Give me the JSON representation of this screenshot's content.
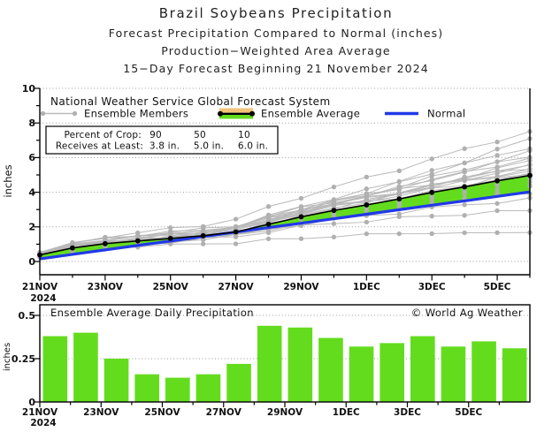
{
  "page": {
    "title_lines": [
      "Brazil Soybeans Precipitation",
      "Forecast Precipitation Compared to Normal (inches)",
      "Production−Weighted Area Average",
      "15−Day Forecast Beginning 21 November 2024"
    ]
  },
  "colors": {
    "green": "#64dc1e",
    "blue": "#2139e8",
    "orange": "#f4c377",
    "member_line": "#b9b9b9",
    "member_dot": "#b0b0b0",
    "grid": "#9a9a9a",
    "frame": "#000000"
  },
  "top_chart": {
    "source_label": "National Weather Service Global Forecast System",
    "legend": {
      "members_label": "Ensemble Members",
      "average_label": "Ensemble Average",
      "normal_label": "Normal"
    },
    "crop_box": {
      "row1_label": "Percent of Crop:",
      "row2_label": "Receives at Least:",
      "cols": [
        {
          "pct": "90",
          "amount": "3.8 in."
        },
        {
          "pct": "50",
          "amount": "5.0 in."
        },
        {
          "pct": "10",
          "amount": "6.0 in."
        }
      ]
    },
    "ylabel": "inches",
    "x_year": "2024"
  },
  "bottom_chart": {
    "title": "Ensemble Average Daily Precipitation",
    "watermark": "© World Ag Weather",
    "ylabel": "inches",
    "x_year": "2024"
  },
  "chart_data": [
    {
      "type": "line",
      "panel": "top-cumulative-precipitation",
      "x_days": [
        "21NOV",
        "22NOV",
        "23NOV",
        "24NOV",
        "25NOV",
        "26NOV",
        "27NOV",
        "28NOV",
        "29NOV",
        "30NOV",
        "1DEC",
        "2DEC",
        "3DEC",
        "4DEC",
        "5DEC",
        "6DEC"
      ],
      "x_tick_labels": [
        "21NOV",
        "23NOV",
        "25NOV",
        "27NOV",
        "29NOV",
        "1DEC",
        "3DEC",
        "5DEC"
      ],
      "ylabel": "inches",
      "ylim": [
        0,
        10
      ],
      "yticks": [
        0,
        2,
        4,
        6,
        8,
        10
      ],
      "grid": "dotted",
      "legend_position": "top-left",
      "series": [
        {
          "name": "Ensemble Average",
          "color": "#000000",
          "values": [
            0.38,
            0.78,
            1.03,
            1.19,
            1.33,
            1.49,
            1.71,
            2.15,
            2.58,
            2.95,
            3.27,
            3.61,
            3.99,
            4.31,
            4.66,
            4.97
          ]
        },
        {
          "name": "Normal",
          "color": "#2139e8",
          "values": [
            0.15,
            0.41,
            0.67,
            0.93,
            1.18,
            1.44,
            1.7,
            1.96,
            2.21,
            2.47,
            2.73,
            2.99,
            3.25,
            3.5,
            3.76,
            4.02
          ]
        }
      ],
      "band": {
        "between": [
          "Ensemble Average",
          "Normal"
        ],
        "color": "#64dc1e"
      },
      "ensemble_members": {
        "color": "#b9b9b9",
        "day0_range": [
          0.2,
          0.55
        ],
        "final_range": [
          1.5,
          7.5
        ],
        "end_values": [
          7.5,
          7.05,
          6.6,
          6.3,
          6.1,
          5.95,
          5.8,
          5.65,
          5.5,
          5.4,
          5.3,
          5.2,
          5.1,
          5.0,
          4.9,
          4.75,
          4.6,
          4.45,
          4.25,
          4.0,
          3.6,
          2.9,
          1.5
        ]
      }
    },
    {
      "type": "bar",
      "panel": "bottom-daily-precipitation",
      "title": "Ensemble Average Daily Precipitation",
      "categories": [
        "21NOV",
        "22NOV",
        "23NOV",
        "24NOV",
        "25NOV",
        "26NOV",
        "27NOV",
        "28NOV",
        "29NOV",
        "30NOV",
        "1DEC",
        "2DEC",
        "3DEC",
        "4DEC",
        "5DEC",
        "6DEC"
      ],
      "x_tick_labels": [
        "21NOV",
        "23NOV",
        "25NOV",
        "27NOV",
        "29NOV",
        "1DEC",
        "3DEC",
        "5DEC"
      ],
      "values": [
        0.38,
        0.4,
        0.25,
        0.16,
        0.14,
        0.16,
        0.22,
        0.44,
        0.43,
        0.37,
        0.32,
        0.34,
        0.38,
        0.32,
        0.35,
        0.31
      ],
      "bar_color": "#64dc1e",
      "ylabel": "inches",
      "ylim": [
        0,
        0.56
      ],
      "yticks": [
        0,
        0.25,
        0.5
      ],
      "ytick_labels": [
        "0",
        "0.25",
        "0.5"
      ]
    }
  ]
}
